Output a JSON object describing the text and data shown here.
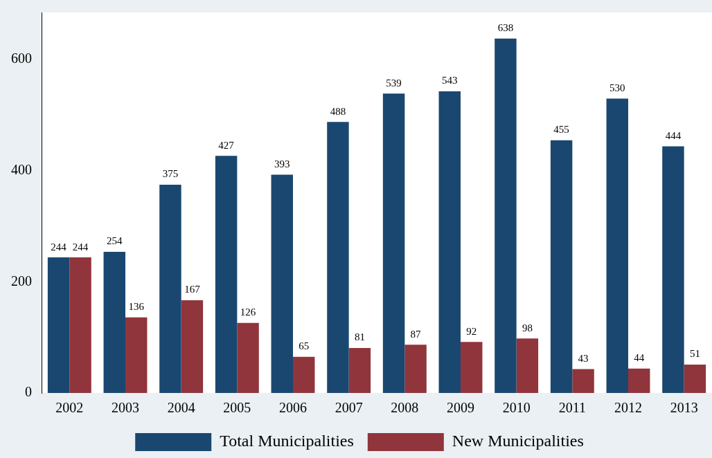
{
  "chart_data": {
    "type": "bar",
    "categories": [
      "2002",
      "2003",
      "2004",
      "2005",
      "2006",
      "2007",
      "2008",
      "2009",
      "2010",
      "2011",
      "2012",
      "2013"
    ],
    "series": [
      {
        "name": "Total Municipalities",
        "color": "#1a476f",
        "values": [
          244,
          254,
          375,
          427,
          393,
          488,
          539,
          543,
          638,
          455,
          530,
          444
        ]
      },
      {
        "name": "New Municipalities",
        "color": "#90353b",
        "values": [
          244,
          136,
          167,
          126,
          65,
          81,
          87,
          92,
          98,
          43,
          44,
          51
        ]
      }
    ],
    "ylim": [
      0,
      685
    ],
    "yticks": [
      0,
      200,
      400,
      600
    ],
    "grid": false,
    "legend": "bottom",
    "data_labels": true
  }
}
